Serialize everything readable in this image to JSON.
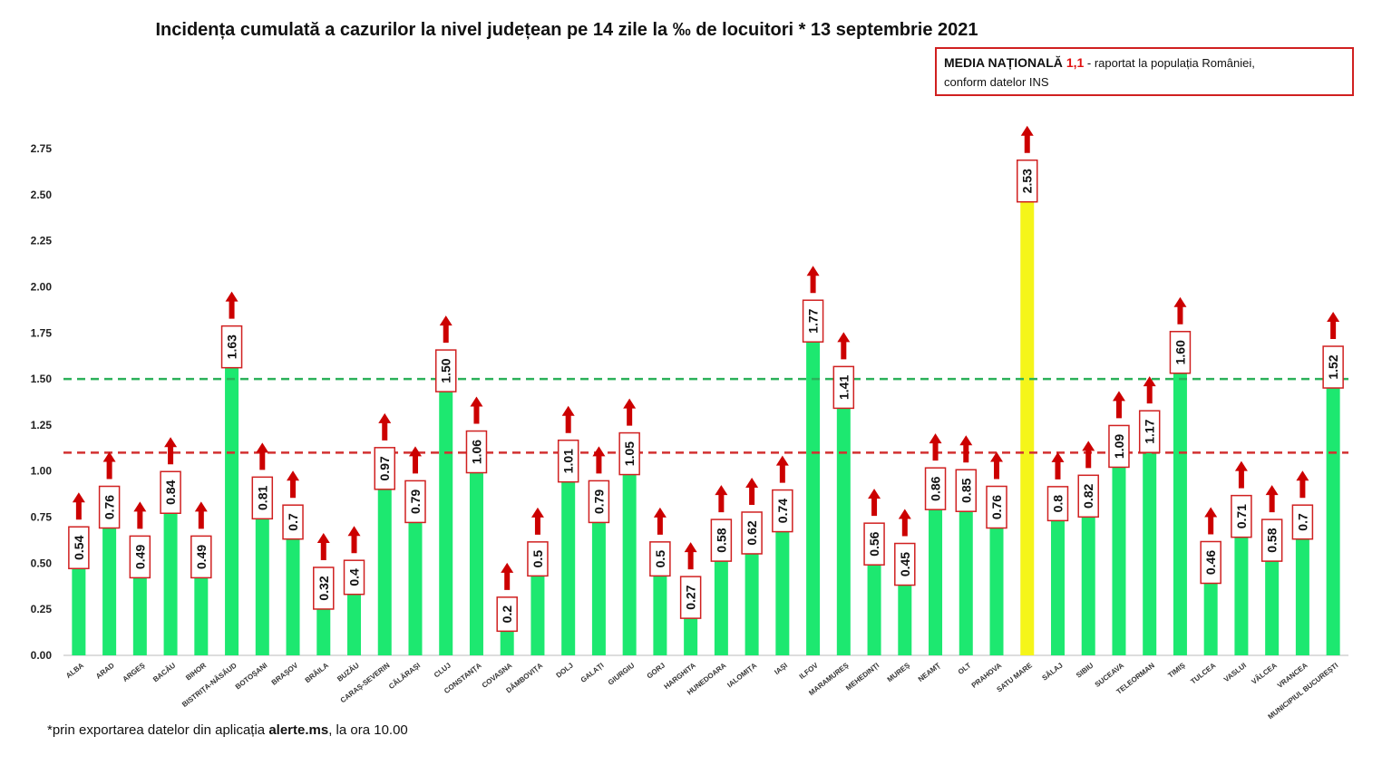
{
  "title": "Incidența cumulată a cazurilor la nivel județean pe 14 zile la ‰ de locuitori * 13 septembrie 2021",
  "national_box": {
    "label": "MEDIA NAȚIONALĂ",
    "value": "1,1",
    "note_1": " - raportat la populația României,",
    "note_2": "conform datelor INS"
  },
  "footnote": {
    "before": "*prin exportarea datelor din aplicația ",
    "bold": "alerte.ms",
    "after": ", la ora 10.00"
  },
  "colors": {
    "bar": "#1de870",
    "highlight_bar": "#f5f51a",
    "arrow": "#cc0000",
    "label_border": "#d02020",
    "green_line": "#2bb15a",
    "red_line": "#d23030"
  },
  "chart_data": {
    "type": "bar",
    "title": "Incidența cumulată a cazurilor la nivel județean pe 14 zile la ‰ de locuitori * 13 septembrie 2021",
    "ylim": [
      0,
      2.75
    ],
    "yticks": [
      "0.00",
      "0.25",
      "0.50",
      "0.75",
      "1.00",
      "1.25",
      "1.50",
      "1.75",
      "2.00",
      "2.25",
      "2.50",
      "2.75"
    ],
    "reference_lines": [
      {
        "value": 1.5,
        "style": "dashed",
        "color": "green"
      },
      {
        "value": 1.1,
        "style": "dashed",
        "color": "red"
      }
    ],
    "highlight_category": "SATU MARE",
    "trend": "up-arrow on every bar",
    "categories": [
      "ALBA",
      "ARAD",
      "ARGEȘ",
      "BACĂU",
      "BIHOR",
      "BISTRIȚA-NĂSĂUD",
      "BOTOȘANI",
      "BRAȘOV",
      "BRĂILA",
      "BUZĂU",
      "CARAȘ-SEVERIN",
      "CĂLĂRAȘI",
      "CLUJ",
      "CONSTANȚA",
      "COVASNA",
      "DÂMBOVIȚA",
      "DOLJ",
      "GALAȚI",
      "GIURGIU",
      "GORJ",
      "HARGHITA",
      "HUNEDOARA",
      "IALOMIȚA",
      "IAȘI",
      "ILFOV",
      "MARAMUREȘ",
      "MEHEDINȚI",
      "MUREȘ",
      "NEAMȚ",
      "OLT",
      "PRAHOVA",
      "SATU MARE",
      "SĂLAJ",
      "SIBIU",
      "SUCEAVA",
      "TELEORMAN",
      "TIMIȘ",
      "TULCEA",
      "VASLUI",
      "VÂLCEA",
      "VRANCEA",
      "MUNICIPIUL BUCUREȘTI"
    ],
    "values": [
      0.54,
      0.76,
      0.49,
      0.84,
      0.49,
      1.63,
      0.81,
      0.7,
      0.32,
      0.4,
      0.97,
      0.79,
      1.5,
      1.06,
      0.2,
      0.5,
      1.01,
      0.79,
      1.05,
      0.5,
      0.27,
      0.58,
      0.62,
      0.74,
      1.77,
      1.41,
      0.56,
      0.45,
      0.86,
      0.85,
      0.76,
      2.53,
      0.8,
      0.82,
      1.09,
      1.17,
      1.6,
      0.46,
      0.71,
      0.58,
      0.7,
      1.52
    ],
    "value_labels": [
      "0.54",
      "0.76",
      "0.49",
      "0.84",
      "0.49",
      "1.63",
      "0.81",
      "0.7",
      "0.32",
      "0.4",
      "0.97",
      "0.79",
      "1.50",
      "1.06",
      "0.2",
      "0.5",
      "1.01",
      "0.79",
      "1.05",
      "0.5",
      "0.27",
      "0.58",
      "0.62",
      "0.74",
      "1.77",
      "1.41",
      "0.56",
      "0.45",
      "0.86",
      "0.85",
      "0.76",
      "2.53",
      "0.8",
      "0.82",
      "1.09",
      "1.17",
      "1.60",
      "0.46",
      "0.71",
      "0.58",
      "0.7",
      "1.52"
    ]
  }
}
